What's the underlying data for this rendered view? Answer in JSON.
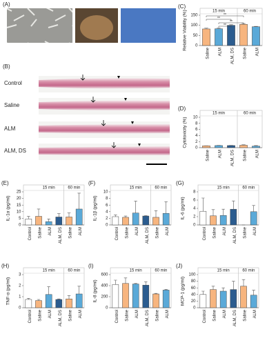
{
  "figure": {
    "A": {
      "panel": "(A)"
    },
    "B": {
      "panel": "(B)",
      "rows": [
        "Control",
        "Saline",
        "ALM",
        "ALM, DS"
      ]
    }
  },
  "chart_data": [
    {
      "type": "bar",
      "panel": "(C)",
      "ylabel": "Relative Viability (%)",
      "group_labels": [
        "15 min",
        "60 min"
      ],
      "categories": [
        "Saline",
        "ALM",
        "ALM, DS",
        "Saline",
        "ALM"
      ],
      "colors": [
        "#f7b57f",
        "#5aa9d8",
        "#2b5c8f",
        "#f7b57f",
        "#5aa9d8"
      ],
      "values": [
        82,
        83,
        100,
        105,
        93
      ],
      "errors": [
        4,
        3,
        3,
        4,
        2
      ],
      "annotations": [
        "**",
        "**",
        "**",
        "**"
      ],
      "ylim": [
        0,
        150
      ],
      "yticks": [
        0,
        50,
        100,
        150
      ]
    },
    {
      "type": "bar",
      "panel": "(D)",
      "ylabel": "Cytotoxicity (%)",
      "group_labels": [
        "15 min",
        "60 min"
      ],
      "categories": [
        "Saline",
        "ALM",
        "ALM, DS",
        "Saline",
        "ALM"
      ],
      "colors": [
        "#f7b57f",
        "#5aa9d8",
        "#2b5c8f",
        "#f7b57f",
        "#5aa9d8"
      ],
      "values": [
        0.6,
        0.7,
        0.7,
        0.8,
        0.5
      ],
      "errors": [
        0.05,
        0.05,
        0.05,
        0.15,
        0.2
      ],
      "ylim": [
        0,
        10
      ],
      "yticks": [
        0,
        2,
        4,
        6,
        8,
        10
      ]
    },
    {
      "type": "bar",
      "panel": "(E)",
      "ylabel": "IL-1α (pg/ml)",
      "group_labels": [
        "15 min",
        "60 min"
      ],
      "categories": [
        "Control",
        "Saline",
        "ALM",
        "ALM, DS",
        "Saline",
        "ALM"
      ],
      "colors": [
        "#ffffff",
        "#f7b57f",
        "#5aa9d8",
        "#2b5c8f",
        "#f7b57f",
        "#5aa9d8"
      ],
      "values": [
        4.5,
        6.5,
        2.5,
        6,
        6,
        12
      ],
      "errors": [
        2,
        5.5,
        2,
        2.5,
        3,
        12
      ],
      "ylim": [
        0,
        25
      ],
      "yticks": [
        0,
        5,
        10,
        15,
        20,
        25
      ]
    },
    {
      "type": "bar",
      "panel": "(F)",
      "ylabel": "IL-1β (pg/ml)",
      "group_labels": [
        "15 min",
        "60 min"
      ],
      "categories": [
        "Control",
        "Saline",
        "ALM",
        "ALM, DS",
        "Saline",
        "ALM"
      ],
      "colors": [
        "#ffffff",
        "#f7b57f",
        "#5aa9d8",
        "#2b5c8f",
        "#f7b57f",
        "#5aa9d8"
      ],
      "values": [
        2.5,
        2.3,
        3.6,
        2.7,
        2.3,
        3.5
      ],
      "errors": [
        0.5,
        0.4,
        3.6,
        0.1,
        2,
        3.5
      ],
      "ylim": [
        0,
        10
      ],
      "yticks": [
        0,
        2,
        4,
        6,
        8,
        10
      ]
    },
    {
      "type": "bar",
      "panel": "(G)",
      "ylabel": "IL-6 (pg/ml)",
      "group_labels": [
        "15 min",
        "60 min"
      ],
      "categories": [
        "Control",
        "Saline",
        "ALM",
        "ALM, DS",
        "Saline",
        "ALM"
      ],
      "colors": [
        "#ffffff",
        "#f7b57f",
        "#5aa9d8",
        "#2b5c8f",
        "#f7b57f",
        "#5aa9d8"
      ],
      "values": [
        3.3,
        2.2,
        2.3,
        3.8,
        0,
        3.2
      ],
      "errors": [
        3.2,
        1.5,
        1.5,
        2,
        0,
        1.5
      ],
      "ylim": [
        0,
        8
      ],
      "yticks": [
        0,
        2,
        4,
        6,
        8
      ]
    },
    {
      "type": "bar",
      "panel": "(H)",
      "ylabel": "TNF-α (pg/ml)",
      "group_labels": [
        "15 min",
        "60 min"
      ],
      "categories": [
        "Control",
        "Saline",
        "ALM",
        "ALM, DS",
        "Saline",
        "ALM"
      ],
      "colors": [
        "#ffffff",
        "#f7b57f",
        "#5aa9d8",
        "#2b5c8f",
        "#f7b57f",
        "#5aa9d8"
      ],
      "values": [
        0.75,
        0.65,
        1.2,
        0.75,
        0.8,
        1.25
      ],
      "errors": [
        0.1,
        0.1,
        0.7,
        0.05,
        0.3,
        0.7
      ],
      "ylim": [
        0,
        3
      ],
      "yticks": [
        0,
        1,
        2,
        3
      ]
    },
    {
      "type": "bar",
      "panel": "(I)",
      "ylabel": "IL-8 (pg/ml)",
      "group_labels": [
        "15 min",
        "60 min"
      ],
      "categories": [
        "Control",
        "Saline",
        "ALM",
        "ALM, DS",
        "Saline",
        "ALM"
      ],
      "colors": [
        "#ffffff",
        "#f7b57f",
        "#5aa9d8",
        "#2b5c8f",
        "#f7b57f",
        "#5aa9d8"
      ],
      "values": [
        420,
        440,
        430,
        410,
        250,
        320
      ],
      "errors": [
        80,
        100,
        10,
        60,
        10,
        10
      ],
      "ylim": [
        0,
        600
      ],
      "yticks": [
        0,
        200,
        400,
        600
      ]
    },
    {
      "type": "bar",
      "panel": "(J)",
      "ylabel": "MCP-1 (pg/ml)",
      "group_labels": [
        "15 min",
        "60 min"
      ],
      "categories": [
        "Control",
        "Saline",
        "ALM",
        "ALM, DS",
        "Saline",
        "ALM"
      ],
      "colors": [
        "#ffffff",
        "#f7b57f",
        "#5aa9d8",
        "#2b5c8f",
        "#f7b57f",
        "#5aa9d8"
      ],
      "values": [
        40,
        55,
        50,
        55,
        65,
        38
      ],
      "errors": [
        10,
        10,
        10,
        25,
        20,
        15
      ],
      "ylim": [
        0,
        100
      ],
      "yticks": [
        0,
        20,
        40,
        60,
        80,
        100
      ]
    }
  ]
}
